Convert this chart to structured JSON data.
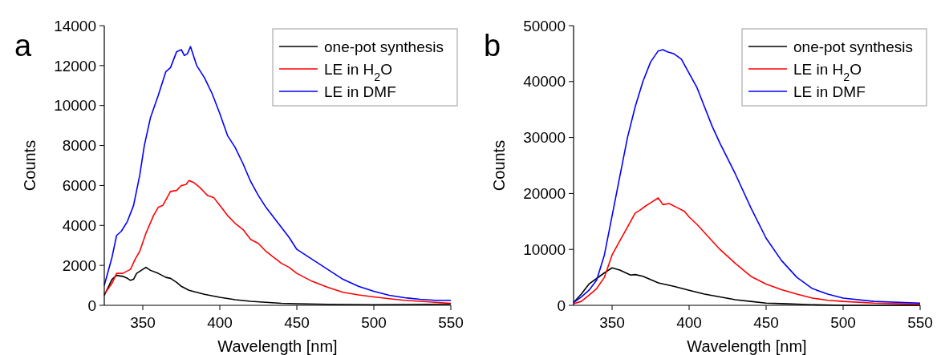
{
  "chart_data": [
    {
      "type": "line",
      "xlabel": "Wavelength [nm]",
      "ylabel": "Counts",
      "annotations": [
        "a"
      ],
      "xlim": [
        325,
        550
      ],
      "xticks": [
        350,
        400,
        450,
        500,
        550
      ],
      "ylim": [
        0,
        14000
      ],
      "yticks": [
        0,
        2000,
        4000,
        6000,
        8000,
        10000,
        12000,
        14000
      ],
      "legend": "top right",
      "grid": false,
      "line_style": "solid",
      "series": [
        {
          "name": "one-pot synthesis",
          "color": "#000000",
          "x": [
            325,
            330,
            333,
            337,
            340,
            342,
            344,
            346,
            350,
            352,
            355,
            360,
            365,
            368,
            372,
            375,
            380,
            390,
            400,
            410,
            420,
            430,
            440,
            450,
            470,
            500,
            520,
            550
          ],
          "values": [
            500,
            1300,
            1500,
            1450,
            1350,
            1250,
            1300,
            1600,
            1800,
            1900,
            1750,
            1600,
            1400,
            1350,
            1150,
            950,
            750,
            550,
            400,
            280,
            200,
            150,
            100,
            80,
            50,
            30,
            40,
            60
          ]
        },
        {
          "name": "LE in H$_{2}$O",
          "color": "#ff0000",
          "x": [
            325,
            330,
            333,
            337,
            342,
            345,
            348,
            352,
            357,
            360,
            363,
            368,
            372,
            375,
            378,
            380,
            383,
            387,
            392,
            396,
            400,
            405,
            410,
            415,
            420,
            425,
            430,
            440,
            445,
            450,
            460,
            470,
            480,
            490,
            500,
            510,
            520,
            530,
            540,
            550
          ],
          "values": [
            550,
            1100,
            1600,
            1600,
            1800,
            2300,
            2700,
            3600,
            4500,
            4900,
            5000,
            5700,
            5750,
            6000,
            6050,
            6250,
            6150,
            5900,
            5500,
            5400,
            5000,
            4500,
            4100,
            3800,
            3300,
            3100,
            2700,
            2100,
            1900,
            1600,
            1200,
            900,
            650,
            520,
            420,
            330,
            250,
            200,
            150,
            100
          ]
        },
        {
          "name": "LE in DMF",
          "color": "#0000ff",
          "x": [
            325,
            330,
            333,
            336,
            340,
            344,
            348,
            351,
            355,
            360,
            365,
            368,
            372,
            375,
            377,
            379,
            381,
            385,
            390,
            395,
            400,
            405,
            410,
            415,
            420,
            425,
            430,
            440,
            445,
            450,
            460,
            470,
            480,
            490,
            500,
            510,
            520,
            530,
            540,
            550
          ],
          "values": [
            1000,
            2400,
            3500,
            3700,
            4200,
            5000,
            6500,
            8000,
            9400,
            10500,
            11700,
            11900,
            12700,
            12800,
            12500,
            12600,
            12950,
            12000,
            11400,
            10600,
            9600,
            8500,
            7900,
            7100,
            6200,
            5500,
            4900,
            3900,
            3400,
            2800,
            2300,
            1800,
            1300,
            950,
            700,
            500,
            380,
            300,
            250,
            250
          ]
        }
      ]
    },
    {
      "type": "line",
      "xlabel": "Wavelength [nm]",
      "ylabel": "Counts",
      "annotations": [
        "b"
      ],
      "xlim": [
        325,
        550
      ],
      "xticks": [
        350,
        400,
        450,
        500,
        550
      ],
      "ylim": [
        0,
        50000
      ],
      "yticks": [
        0,
        10000,
        20000,
        30000,
        40000,
        50000
      ],
      "legend": "top right",
      "grid": false,
      "line_style": "solid",
      "series": [
        {
          "name": "one-pot synthesis",
          "color": "#000000",
          "x": [
            325,
            330,
            335,
            340,
            345,
            350,
            355,
            362,
            365,
            370,
            380,
            390,
            400,
            410,
            420,
            430,
            440,
            450,
            460,
            480,
            500,
            550
          ],
          "values": [
            500,
            2000,
            3800,
            4800,
            5800,
            6700,
            6300,
            5400,
            5500,
            5200,
            4000,
            3400,
            2700,
            2000,
            1500,
            1000,
            700,
            400,
            300,
            100,
            0,
            0
          ]
        },
        {
          "name": "LE in H$_{2}$O",
          "color": "#ff0000",
          "x": [
            325,
            330,
            335,
            340,
            345,
            350,
            355,
            360,
            365,
            368,
            372,
            376,
            380,
            383,
            387,
            392,
            397,
            400,
            405,
            410,
            420,
            430,
            440,
            450,
            460,
            470,
            480,
            490,
            500,
            520,
            550
          ],
          "values": [
            300,
            700,
            1800,
            3000,
            5000,
            9000,
            11500,
            14000,
            16500,
            17000,
            17800,
            18500,
            19200,
            18000,
            18200,
            17500,
            16800,
            15800,
            14500,
            13000,
            10000,
            7500,
            5200,
            3800,
            2800,
            2000,
            1300,
            900,
            700,
            400,
            200
          ]
        },
        {
          "name": "LE in DMF",
          "color": "#0000ff",
          "x": [
            325,
            330,
            335,
            340,
            345,
            350,
            355,
            360,
            365,
            370,
            375,
            380,
            383,
            386,
            390,
            395,
            400,
            405,
            410,
            415,
            420,
            430,
            440,
            450,
            460,
            470,
            480,
            490,
            500,
            520,
            550
          ],
          "values": [
            500,
            1500,
            2700,
            4500,
            9000,
            16000,
            23000,
            30000,
            35500,
            40000,
            43500,
            45500,
            45700,
            45300,
            45000,
            44000,
            41500,
            39000,
            35500,
            32000,
            29000,
            23500,
            17500,
            12000,
            8000,
            5000,
            3000,
            2000,
            1300,
            700,
            400
          ]
        }
      ]
    }
  ]
}
